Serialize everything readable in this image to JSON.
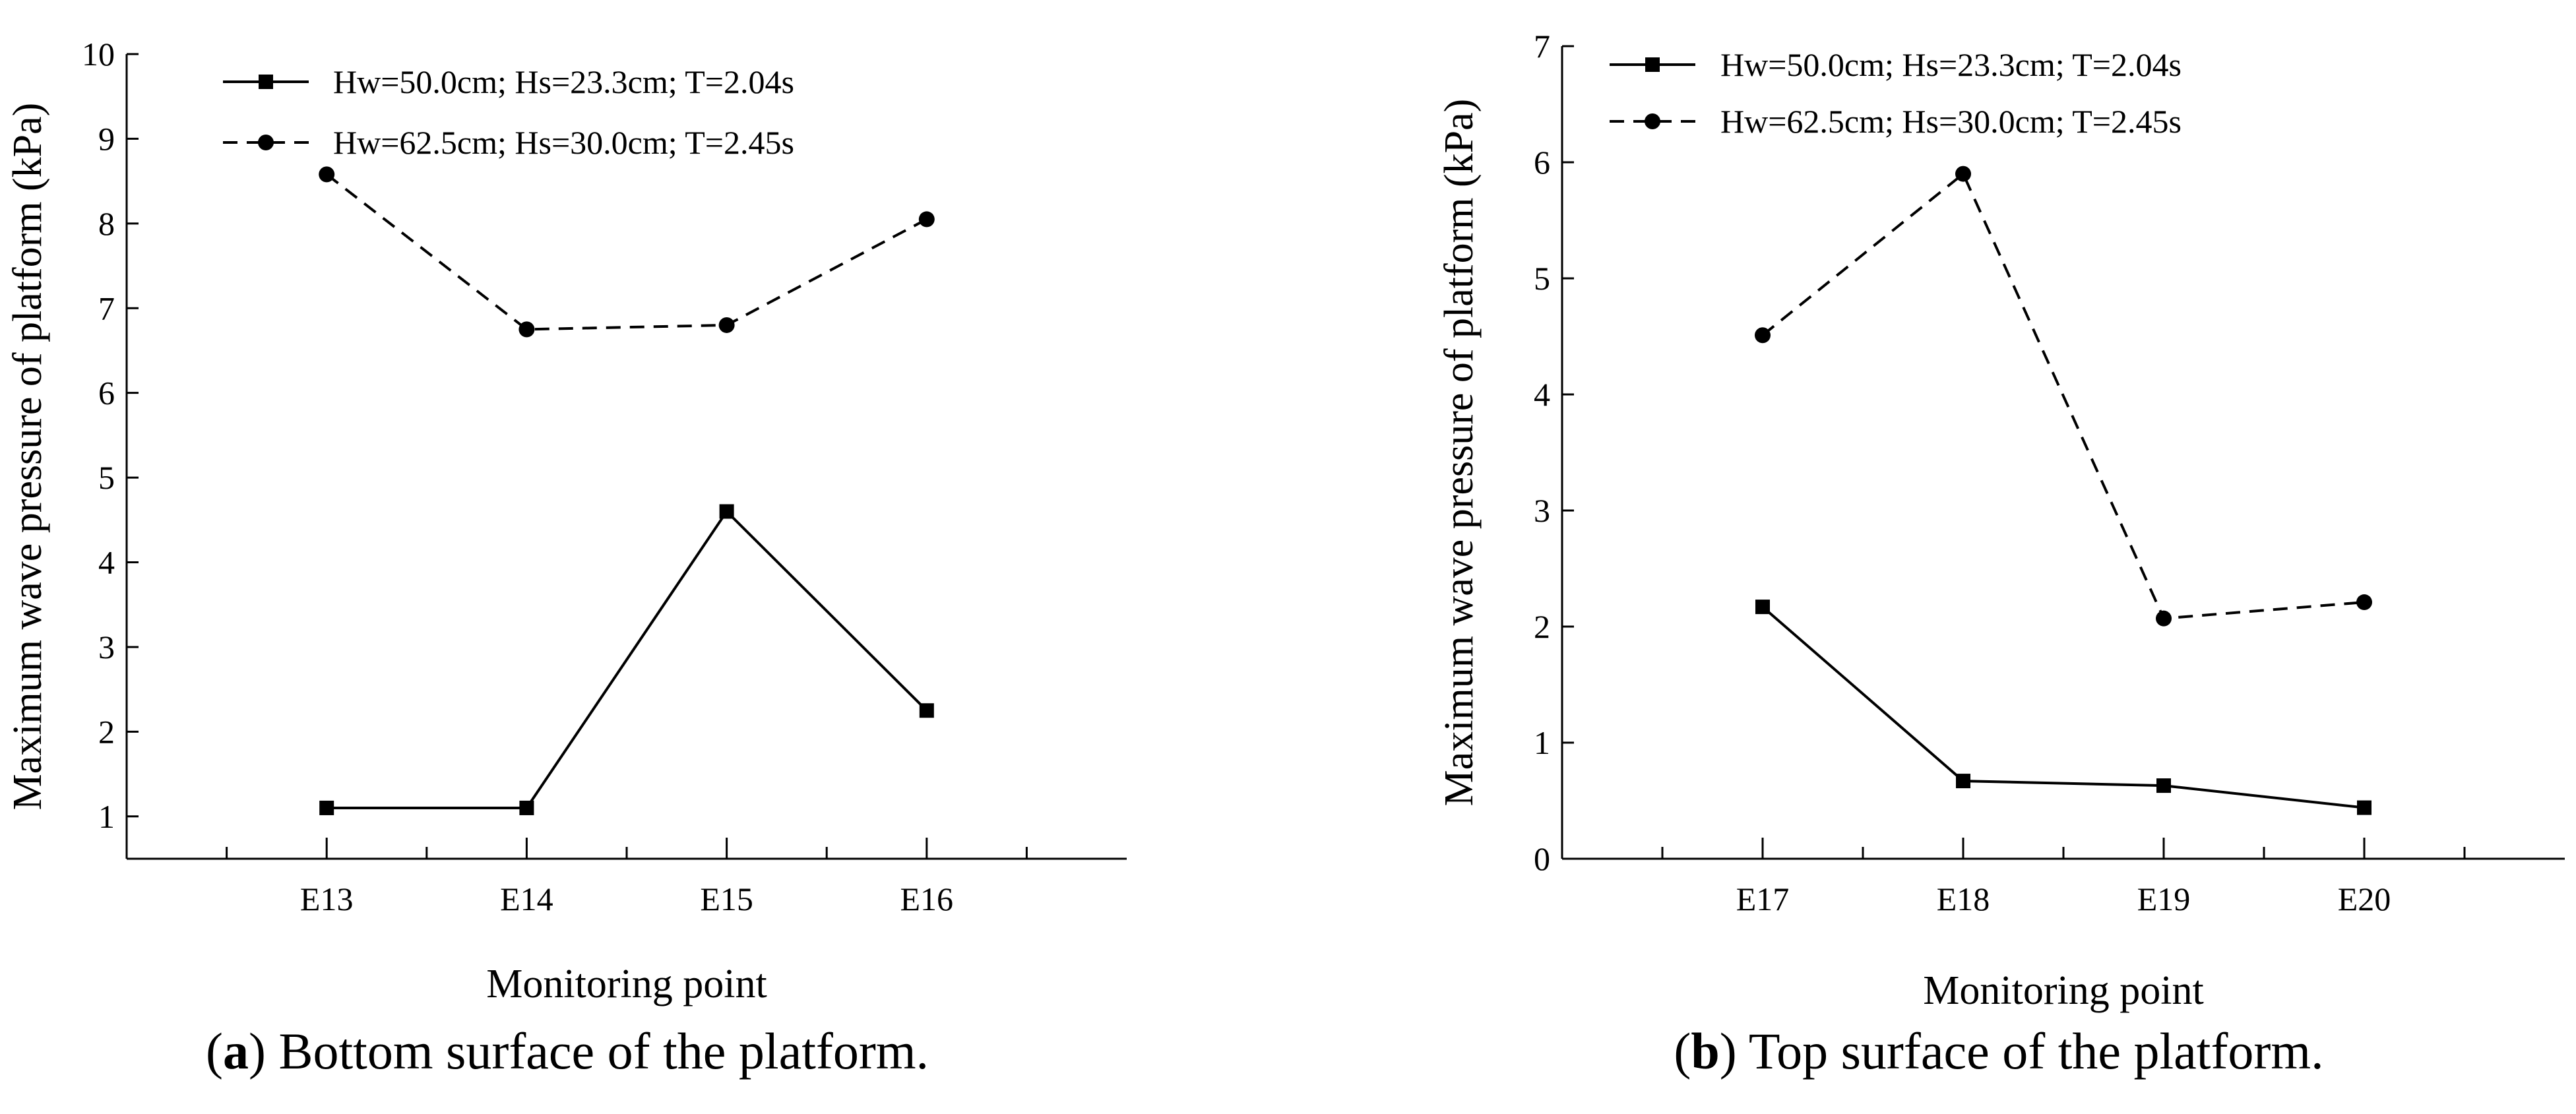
{
  "chart_data": [
    {
      "type": "line",
      "caption_letter": "a",
      "caption_text": "Bottom surface of the platform.",
      "xlabel": "Monitoring point",
      "ylabel": "Maximum wave pressure of platform (kPa)",
      "categories": [
        "E13",
        "E14",
        "E15",
        "E16"
      ],
      "ylim": [
        0.5,
        10
      ],
      "yticks": [
        1,
        2,
        3,
        4,
        5,
        6,
        7,
        8,
        9,
        10
      ],
      "grid": false,
      "legend_position": "top-left",
      "series": [
        {
          "name": "Hw=50.0cm; Hs=23.3cm; T=2.04s",
          "style": "solid",
          "marker": "square",
          "values": [
            1.1,
            1.1,
            4.6,
            2.25
          ]
        },
        {
          "name": "Hw=62.5cm; Hs=30.0cm; T=2.45s",
          "style": "dashed",
          "marker": "circle",
          "values": [
            8.58,
            6.75,
            6.8,
            8.05
          ]
        }
      ]
    },
    {
      "type": "line",
      "caption_letter": "b",
      "caption_text": "Top surface of the platform.",
      "xlabel": "Monitoring point",
      "ylabel": "Maximum wave pressure of platform (kPa)",
      "categories": [
        "E17",
        "E18",
        "E19",
        "E20"
      ],
      "ylim": [
        0,
        7
      ],
      "yticks": [
        0,
        1,
        2,
        3,
        4,
        5,
        6,
        7
      ],
      "grid": false,
      "legend_position": "top-left",
      "series": [
        {
          "name": "Hw=50.0cm; Hs=23.3cm; T=2.04s",
          "style": "solid",
          "marker": "square",
          "values": [
            2.17,
            0.67,
            0.63,
            0.44
          ]
        },
        {
          "name": "Hw=62.5cm; Hs=30.0cm; T=2.45s",
          "style": "dashed",
          "marker": "circle",
          "values": [
            4.51,
            5.9,
            2.07,
            2.21
          ]
        }
      ]
    }
  ]
}
